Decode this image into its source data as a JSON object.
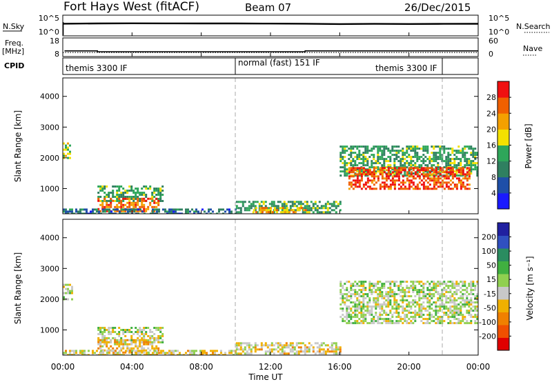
{
  "header": {
    "title": "Fort Hays West (fitACF)",
    "beam": "Beam 07",
    "date": "26/Dec/2015"
  },
  "noise_panel": {
    "left_label": "N.Sky",
    "left_ticks": [
      "10^5",
      "10^0"
    ],
    "right_label": "N.Search",
    "right_ticks": [
      "10^5",
      "10^0"
    ]
  },
  "freq_panel": {
    "left_label_line1": "Freq.",
    "left_label_line2": "[MHz]",
    "left_ticks": [
      "18",
      "8"
    ],
    "right_label": "Nave",
    "right_ticks": [
      "60",
      "0"
    ]
  },
  "cpid_panel": {
    "label": "CPID",
    "segments": [
      {
        "text": "themis 3300 IF",
        "start_hour": 0,
        "end_hour": 10
      },
      {
        "text": "normal (fast) 151 IF",
        "start_hour": 10,
        "end_hour": 22
      },
      {
        "text": "themis 3300 IF",
        "start_hour": 22,
        "end_hour": 24
      }
    ]
  },
  "power_panel": {
    "ylabel": "Slant Range [km]",
    "colorbar_label": "Power [dB]",
    "colorbar_ticks": [
      "28",
      "24",
      "20",
      "16",
      "12",
      "8",
      "4"
    ]
  },
  "velocity_panel": {
    "ylabel": "Slant Range [km]",
    "colorbar_label": "Velocity [m s⁻¹]",
    "colorbar_ticks": [
      "200",
      "100",
      "50",
      "15",
      "-15",
      "-50",
      "-100",
      "-200"
    ]
  },
  "x_axis": {
    "label": "Time UT",
    "ticks": [
      "00:00",
      "04:00",
      "08:00",
      "12:00",
      "16:00",
      "20:00",
      "00:00"
    ]
  },
  "chart_data": [
    {
      "type": "line",
      "title": "N.Sky",
      "x_unit": "hour UT",
      "xlim": [
        0,
        24
      ],
      "y_scale": "log",
      "series": [
        {
          "name": "N.Sky",
          "x": [
            0,
            2,
            4,
            6,
            8,
            10,
            12,
            14,
            16,
            18,
            20,
            22,
            24
          ],
          "values": [
            1000,
            1200,
            1300,
            1250,
            1200,
            1200,
            1100,
            1000,
            800,
            900,
            850,
            900,
            950
          ]
        }
      ]
    },
    {
      "type": "line",
      "title": "Freq.",
      "x_unit": "hour UT",
      "xlim": [
        0,
        24
      ],
      "ylim": [
        8,
        18
      ],
      "series": [
        {
          "name": "Freq.",
          "x": [
            0.1,
            2,
            2,
            14,
            14,
            24
          ],
          "values": [
            11,
            11,
            10.5,
            10.5,
            11,
            11
          ]
        },
        {
          "name": "Nave",
          "x": [
            0,
            24
          ],
          "values": [
            10,
            10
          ]
        }
      ]
    },
    {
      "type": "heatmap",
      "title": "Power",
      "xlabel": "Time UT",
      "ylabel": "Slant Range [km]",
      "xlim": [
        0,
        24
      ],
      "ylim": [
        180,
        4600
      ],
      "z_label": "Power [dB]",
      "z_range": [
        0,
        30
      ],
      "colors": [
        "#1a1aff",
        "#1f4fa8",
        "#2f8060",
        "#2ea65a",
        "#f4e100",
        "#f4a000",
        "#f06000",
        "#f01010"
      ],
      "regions": [
        {
          "t": [
            0,
            0.4
          ],
          "r": [
            2000,
            2500
          ],
          "z": 16
        },
        {
          "t": [
            2.0,
            5.8
          ],
          "r": [
            600,
            1100
          ],
          "z": 12
        },
        {
          "t": [
            2.0,
            5.5
          ],
          "r": [
            250,
            700
          ],
          "z": 24
        },
        {
          "t": [
            0,
            10
          ],
          "r": [
            200,
            350
          ],
          "z": 8
        },
        {
          "t": [
            10,
            16
          ],
          "r": [
            200,
            600
          ],
          "z": 12
        },
        {
          "t": [
            11,
            14
          ],
          "r": [
            250,
            400
          ],
          "z": 20
        },
        {
          "t": [
            16,
            24
          ],
          "r": [
            1400,
            2400
          ],
          "z": 12
        },
        {
          "t": [
            16.5,
            23.5
          ],
          "r": [
            1000,
            1700
          ],
          "z": 26
        }
      ]
    },
    {
      "type": "heatmap",
      "title": "Velocity",
      "xlabel": "Time UT",
      "ylabel": "Slant Range [km]",
      "xlim": [
        0,
        24
      ],
      "ylim": [
        180,
        4600
      ],
      "z_label": "Velocity [m s⁻¹]",
      "z_range": [
        -250,
        250
      ],
      "colors": [
        "#e00000",
        "#f05000",
        "#f08000",
        "#f0b000",
        "#c8c8c8",
        "#90d050",
        "#40b040",
        "#2a8c60",
        "#3050c0",
        "#2020a0"
      ],
      "regions": [
        {
          "t": [
            0,
            0.5
          ],
          "r": [
            2000,
            2500
          ],
          "z": 0
        },
        {
          "t": [
            2.0,
            5.8
          ],
          "r": [
            600,
            1100
          ],
          "z": 0
        },
        {
          "t": [
            2.0,
            5.5
          ],
          "r": [
            250,
            700
          ],
          "z": -60
        },
        {
          "t": [
            0,
            10
          ],
          "r": [
            200,
            350
          ],
          "z": -40
        },
        {
          "t": [
            10,
            16
          ],
          "r": [
            200,
            600
          ],
          "z": -40
        },
        {
          "t": [
            16,
            24
          ],
          "r": [
            1200,
            2600
          ],
          "z": 0
        }
      ]
    }
  ]
}
